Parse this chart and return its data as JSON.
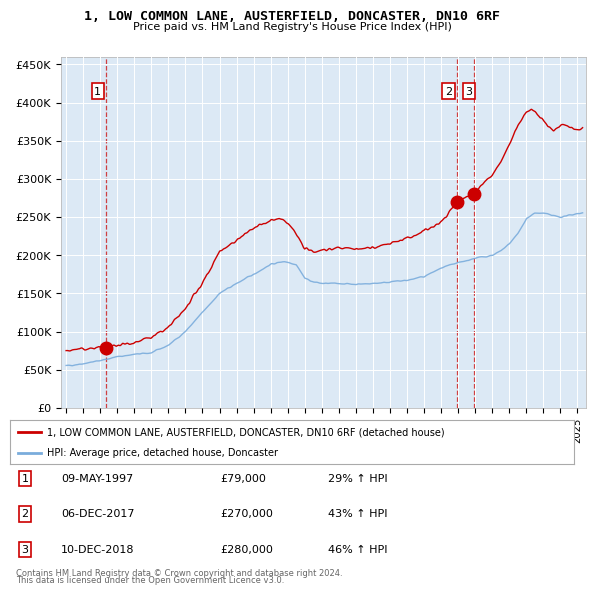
{
  "title": "1, LOW COMMON LANE, AUSTERFIELD, DONCASTER, DN10 6RF",
  "subtitle": "Price paid vs. HM Land Registry's House Price Index (HPI)",
  "background_color": "#dce9f5",
  "red_line_color": "#cc0000",
  "blue_line_color": "#7aacdc",
  "ylim": [
    0,
    460000
  ],
  "xlim_start": 1994.7,
  "xlim_end": 2025.5,
  "ylabel_ticks": [
    0,
    50000,
    100000,
    150000,
    200000,
    250000,
    300000,
    350000,
    400000,
    450000
  ],
  "ylabel_labels": [
    "£0",
    "£50K",
    "£100K",
    "£150K",
    "£200K",
    "£250K",
    "£300K",
    "£350K",
    "£400K",
    "£450K"
  ],
  "transactions": [
    {
      "num": 1,
      "date_dec": 1997.36,
      "price": 79000,
      "label": "09-MAY-1997",
      "price_str": "£79,000",
      "hpi_str": "29% ↑ HPI"
    },
    {
      "num": 2,
      "date_dec": 2017.92,
      "price": 270000,
      "label": "06-DEC-2017",
      "price_str": "£270,000",
      "hpi_str": "43% ↑ HPI"
    },
    {
      "num": 3,
      "date_dec": 2018.94,
      "price": 280000,
      "label": "10-DEC-2018",
      "price_str": "£280,000",
      "hpi_str": "46% ↑ HPI"
    }
  ],
  "legend_red_label": "1, LOW COMMON LANE, AUSTERFIELD, DONCASTER, DN10 6RF (detached house)",
  "legend_blue_label": "HPI: Average price, detached house, Doncaster",
  "footer1": "Contains HM Land Registry data © Crown copyright and database right 2024.",
  "footer2": "This data is licensed under the Open Government Licence v3.0."
}
